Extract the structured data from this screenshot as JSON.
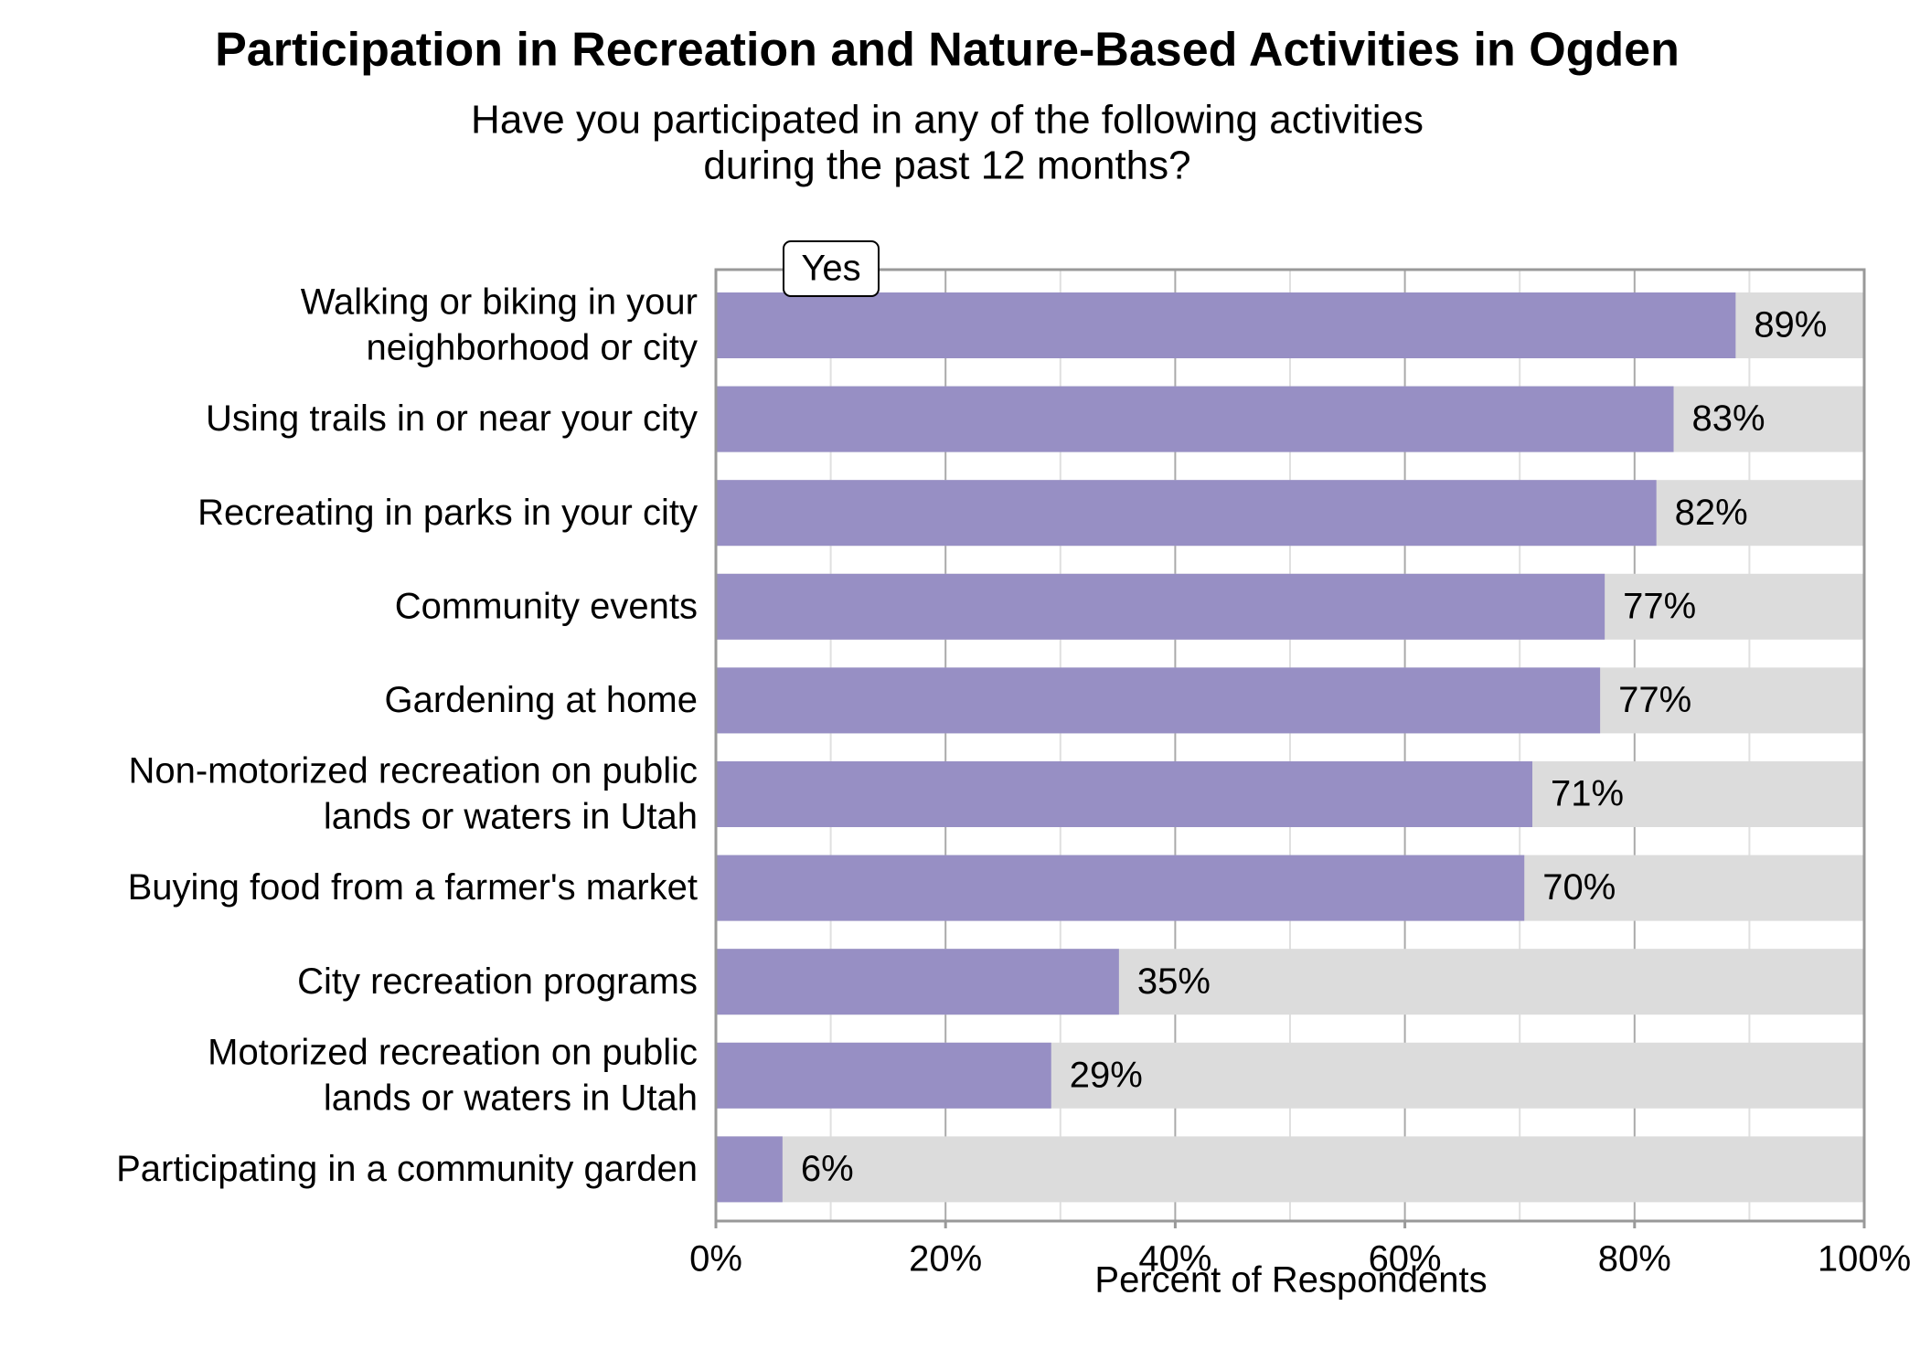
{
  "chart_data": {
    "type": "hbar",
    "title": "Participation in Recreation and Nature-Based Activities in Ogden",
    "subtitle": [
      "Have you participated in any of the following activities",
      "during the past 12 months?"
    ],
    "x_label": "Percent of Respondents",
    "categories": [
      [
        "Walking or biking in your",
        "neighborhood or city"
      ],
      [
        "Using trails in or near your city"
      ],
      [
        "Recreating in parks in your city"
      ],
      [
        "Community events"
      ],
      [
        "Gardening at home"
      ],
      [
        "Non-motorized recreation on public",
        "lands or waters in Utah"
      ],
      [
        "Buying food from a farmer's market"
      ],
      [
        "City recreation programs"
      ],
      [
        "Motorized recreation on public",
        "lands or waters in Utah"
      ],
      [
        "Participating in a community garden"
      ]
    ],
    "series": [
      {
        "name": "Yes",
        "color": "#978fc4",
        "values": [
          88.8,
          83.4,
          81.9,
          77.4,
          77.0,
          71.1,
          70.4,
          35.1,
          29.2,
          5.8
        ],
        "value_labels": [
          "89%",
          "83%",
          "82%",
          "77%",
          "77%",
          "71%",
          "70%",
          "35%",
          "29%",
          "6%"
        ]
      }
    ],
    "track_color": "#dcdcdc",
    "xlim": [
      0,
      100
    ],
    "xticks": [
      {
        "value": 0,
        "label": "0%"
      },
      {
        "value": 20,
        "label": "20%"
      },
      {
        "value": 40,
        "label": "40%"
      },
      {
        "value": 60,
        "label": "60%"
      },
      {
        "value": 80,
        "label": "80%"
      },
      {
        "value": 100,
        "label": "100%"
      }
    ],
    "x_minor_ticks": [
      10,
      30,
      50,
      70,
      90
    ],
    "grid": true
  }
}
